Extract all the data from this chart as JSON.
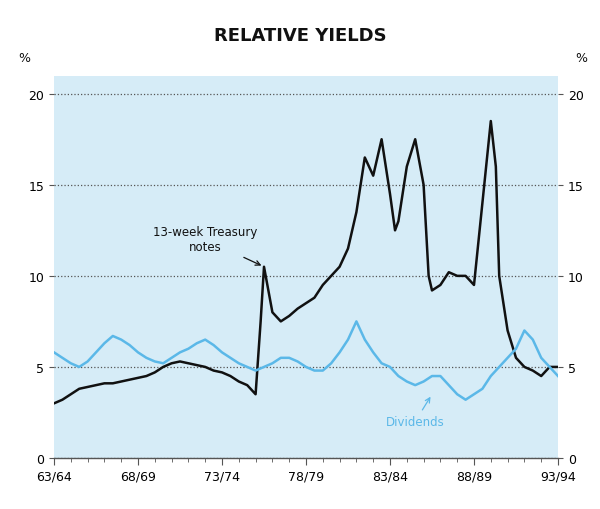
{
  "title": "RELATIVE YIELDS",
  "background_color": "#d6ecf7",
  "outer_background": "#ffffff",
  "xlim": [
    0,
    30
  ],
  "ylim": [
    0,
    21
  ],
  "yticks": [
    0,
    5,
    10,
    15,
    20
  ],
  "xtick_labels": [
    "63/64",
    "68/69",
    "73/74",
    "78/79",
    "83/84",
    "88/89",
    "93/94"
  ],
  "xtick_positions": [
    0,
    5,
    10,
    15,
    20,
    25,
    30
  ],
  "treasury_color": "#111111",
  "dividend_color": "#5bb8e8",
  "treasury_label": "13-week Treasury\nnotes",
  "dividend_label": "Dividends",
  "treasury_x": [
    0.0,
    0.5,
    1.0,
    1.5,
    2.0,
    2.5,
    3.0,
    3.5,
    4.0,
    4.5,
    5.0,
    5.5,
    6.0,
    6.5,
    7.0,
    7.5,
    8.0,
    8.5,
    9.0,
    9.5,
    10.0,
    10.5,
    11.0,
    11.5,
    12.0,
    12.3,
    12.5,
    13.0,
    13.5,
    14.0,
    14.5,
    15.0,
    15.5,
    16.0,
    16.5,
    17.0,
    17.5,
    18.0,
    18.5,
    19.0,
    19.5,
    20.0,
    20.3,
    20.5,
    21.0,
    21.5,
    22.0,
    22.3,
    22.5,
    23.0,
    23.5,
    24.0,
    24.5,
    25.0,
    25.5,
    26.0,
    26.3,
    26.5,
    27.0,
    27.5,
    28.0,
    28.5,
    29.0,
    29.5,
    30.0
  ],
  "treasury_y": [
    3.0,
    3.2,
    3.5,
    3.8,
    3.9,
    4.0,
    4.1,
    4.1,
    4.2,
    4.3,
    4.4,
    4.5,
    4.7,
    5.0,
    5.2,
    5.3,
    5.2,
    5.1,
    5.0,
    4.8,
    4.7,
    4.5,
    4.2,
    4.0,
    3.5,
    7.5,
    10.5,
    8.0,
    7.5,
    7.8,
    8.2,
    8.5,
    8.8,
    9.5,
    10.0,
    10.5,
    11.5,
    13.5,
    16.5,
    15.5,
    17.5,
    14.5,
    12.5,
    13.0,
    16.0,
    17.5,
    15.0,
    10.0,
    9.2,
    9.5,
    10.2,
    10.0,
    10.0,
    9.5,
    14.0,
    18.5,
    16.0,
    10.0,
    7.0,
    5.5,
    5.0,
    4.8,
    4.5,
    5.0,
    5.0
  ],
  "dividend_x": [
    0.0,
    0.5,
    1.0,
    1.5,
    2.0,
    2.5,
    3.0,
    3.5,
    4.0,
    4.5,
    5.0,
    5.5,
    6.0,
    6.5,
    7.0,
    7.5,
    8.0,
    8.5,
    9.0,
    9.5,
    10.0,
    10.5,
    11.0,
    11.5,
    12.0,
    12.5,
    13.0,
    13.5,
    14.0,
    14.5,
    15.0,
    15.5,
    16.0,
    16.5,
    17.0,
    17.5,
    18.0,
    18.5,
    19.0,
    19.5,
    20.0,
    20.5,
    21.0,
    21.5,
    22.0,
    22.5,
    23.0,
    23.5,
    24.0,
    24.5,
    25.0,
    25.5,
    26.0,
    26.5,
    27.0,
    27.5,
    28.0,
    28.5,
    29.0,
    29.5,
    30.0
  ],
  "dividend_y": [
    5.8,
    5.5,
    5.2,
    5.0,
    5.3,
    5.8,
    6.3,
    6.7,
    6.5,
    6.2,
    5.8,
    5.5,
    5.3,
    5.2,
    5.5,
    5.8,
    6.0,
    6.3,
    6.5,
    6.2,
    5.8,
    5.5,
    5.2,
    5.0,
    4.8,
    5.0,
    5.2,
    5.5,
    5.5,
    5.3,
    5.0,
    4.8,
    4.8,
    5.2,
    5.8,
    6.5,
    7.5,
    6.5,
    5.8,
    5.2,
    5.0,
    4.5,
    4.2,
    4.0,
    4.2,
    4.5,
    4.5,
    4.0,
    3.5,
    3.2,
    3.5,
    3.8,
    4.5,
    5.0,
    5.5,
    6.0,
    7.0,
    6.5,
    5.5,
    5.0,
    4.5
  ]
}
